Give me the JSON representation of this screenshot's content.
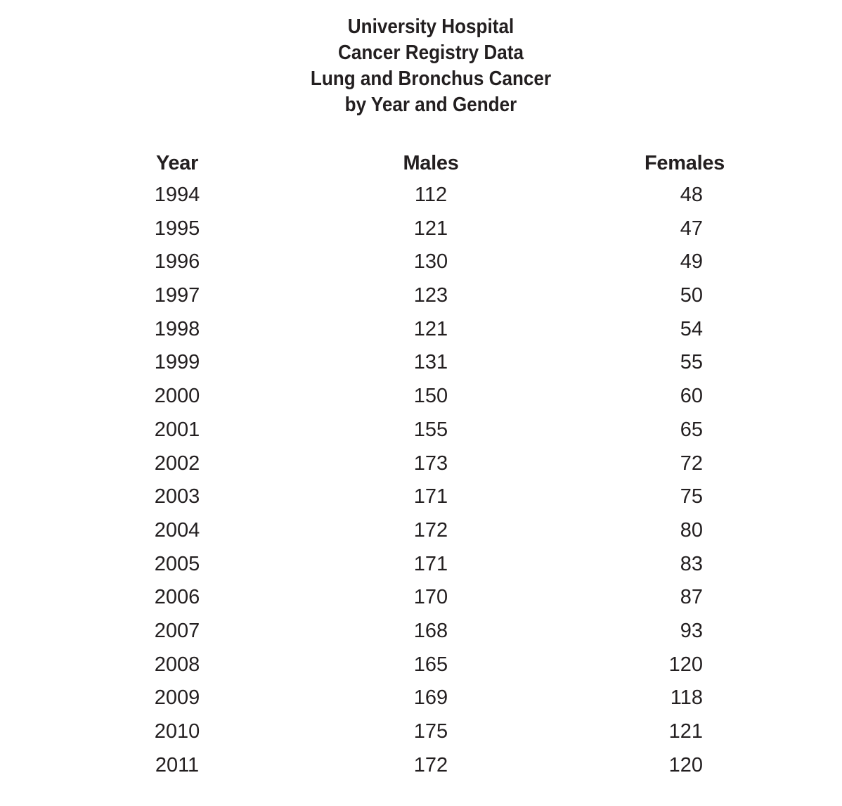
{
  "title_lines": [
    "University Hospital",
    "Cancer Registry Data",
    "Lung and Bronchus Cancer",
    "by Year and Gender"
  ],
  "table": {
    "headers": [
      "Year",
      "Males",
      "Females"
    ],
    "rows": [
      [
        "1994",
        "112",
        "48"
      ],
      [
        "1995",
        "121",
        "47"
      ],
      [
        "1996",
        "130",
        "49"
      ],
      [
        "1997",
        "123",
        "50"
      ],
      [
        "1998",
        "121",
        "54"
      ],
      [
        "1999",
        "131",
        "55"
      ],
      [
        "2000",
        "150",
        "60"
      ],
      [
        "2001",
        "155",
        "65"
      ],
      [
        "2002",
        "173",
        "72"
      ],
      [
        "2003",
        "171",
        "75"
      ],
      [
        "2004",
        "172",
        "80"
      ],
      [
        "2005",
        "171",
        "83"
      ],
      [
        "2006",
        "170",
        "87"
      ],
      [
        "2007",
        "168",
        "93"
      ],
      [
        "2008",
        "165",
        "120"
      ],
      [
        "2009",
        "169",
        "118"
      ],
      [
        "2010",
        "175",
        "121"
      ],
      [
        "2011",
        "172",
        "120"
      ]
    ]
  }
}
